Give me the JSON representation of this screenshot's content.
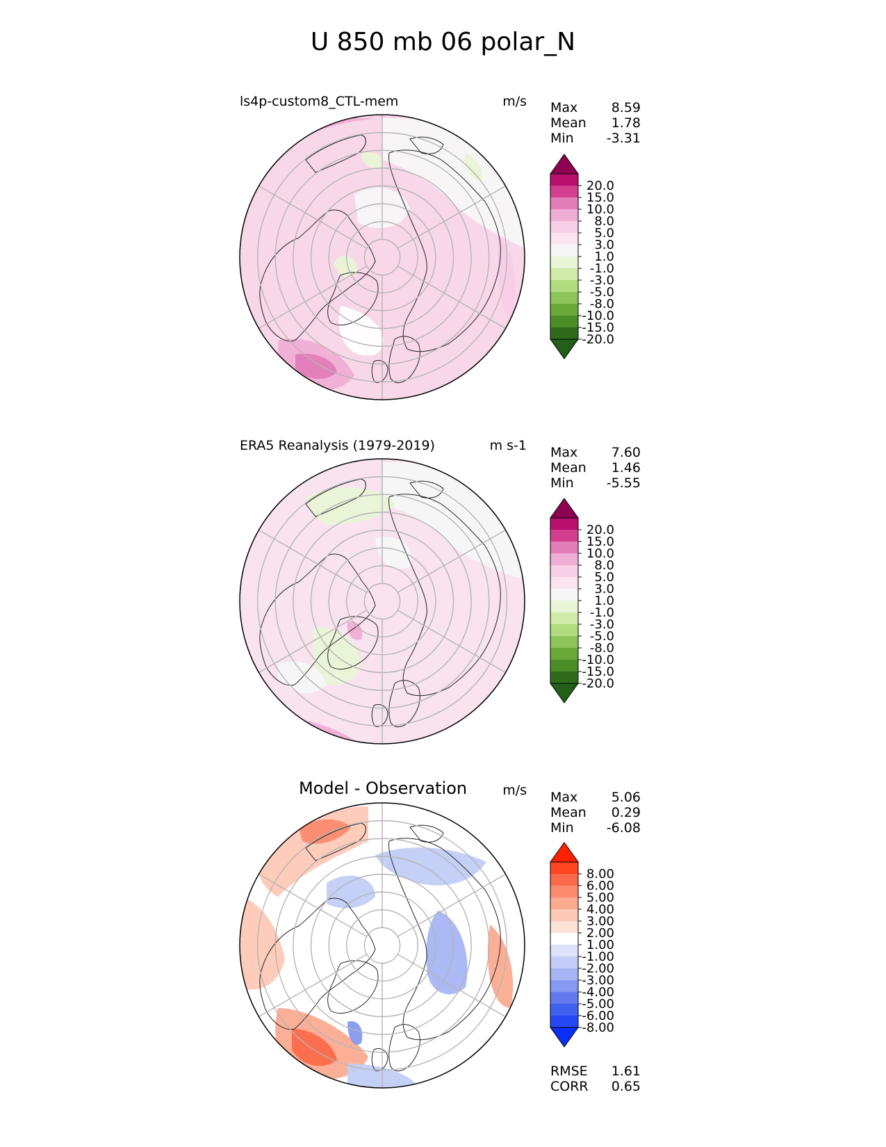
{
  "title": "U 850 mb 06 polar_N",
  "panels": [
    {
      "id": "model",
      "title": "ls4p-custom8_CTL-mem",
      "units": "m/s",
      "stats": [
        {
          "label": "Max",
          "value": "8.59"
        },
        {
          "label": "Mean",
          "value": "1.78"
        },
        {
          "label": "Min",
          "value": "-3.31"
        }
      ],
      "colorbar": {
        "ticks": [
          "20.0",
          "15.0",
          "10.0",
          "8.0",
          "5.0",
          "3.0",
          "1.0",
          "-1.0",
          "-3.0",
          "-5.0",
          "-8.0",
          "-10.0",
          "-15.0",
          "-20.0"
        ],
        "colors": [
          "#8e0152",
          "#b8106e",
          "#d33e8f",
          "#e27db7",
          "#f0aed4",
          "#f8cde6",
          "#fbe4f0",
          "#f7f7f7",
          "#e9f4d6",
          "#d0eba9",
          "#b1dc7e",
          "#8dc55a",
          "#6aa83a",
          "#4b8c27",
          "#2f6b1b",
          "#225f19"
        ]
      },
      "map": {
        "style": "sequential"
      }
    },
    {
      "id": "obs",
      "title": "ERA5 Reanalysis (1979-2019)",
      "units": "m s-1",
      "stats": [
        {
          "label": "Max",
          "value": "7.60"
        },
        {
          "label": "Mean",
          "value": "1.46"
        },
        {
          "label": "Min",
          "value": "-5.55"
        }
      ],
      "colorbar": {
        "ticks": [
          "20.0",
          "15.0",
          "10.0",
          "8.0",
          "5.0",
          "3.0",
          "1.0",
          "-1.0",
          "-3.0",
          "-5.0",
          "-8.0",
          "-10.0",
          "-15.0",
          "-20.0"
        ],
        "colors": [
          "#8e0152",
          "#b8106e",
          "#d33e8f",
          "#e27db7",
          "#f0aed4",
          "#f8cde6",
          "#fbe4f0",
          "#f7f7f7",
          "#e9f4d6",
          "#d0eba9",
          "#b1dc7e",
          "#8dc55a",
          "#6aa83a",
          "#4b8c27",
          "#2f6b1b",
          "#225f19"
        ]
      },
      "map": {
        "style": "sequential"
      }
    },
    {
      "id": "diff",
      "title": "Model - Observation",
      "units": "m/s",
      "stats": [
        {
          "label": "Max",
          "value": "5.06"
        },
        {
          "label": "Mean",
          "value": "0.29"
        },
        {
          "label": "Min",
          "value": "-6.08"
        }
      ],
      "extra_stats": [
        {
          "label": "RMSE",
          "value": "1.61"
        },
        {
          "label": "CORR",
          "value": "0.65"
        }
      ],
      "colorbar": {
        "ticks": [
          "8.00",
          "6.00",
          "5.00",
          "4.00",
          "3.00",
          "2.00",
          "1.00",
          "-1.00",
          "-2.00",
          "-3.00",
          "-4.00",
          "-5.00",
          "-6.00",
          "-8.00"
        ],
        "colors": [
          "#ff2200",
          "#ff4420",
          "#fb6a4a",
          "#fc8a6f",
          "#fcab91",
          "#fdc9b7",
          "#fee2d8",
          "#ffffff",
          "#dde4fa",
          "#c2cdf7",
          "#a6b6f4",
          "#8599f0",
          "#627aee",
          "#4060f0",
          "#2649f5",
          "#0a2ff8"
        ]
      },
      "map": {
        "style": "diverging"
      }
    }
  ]
}
